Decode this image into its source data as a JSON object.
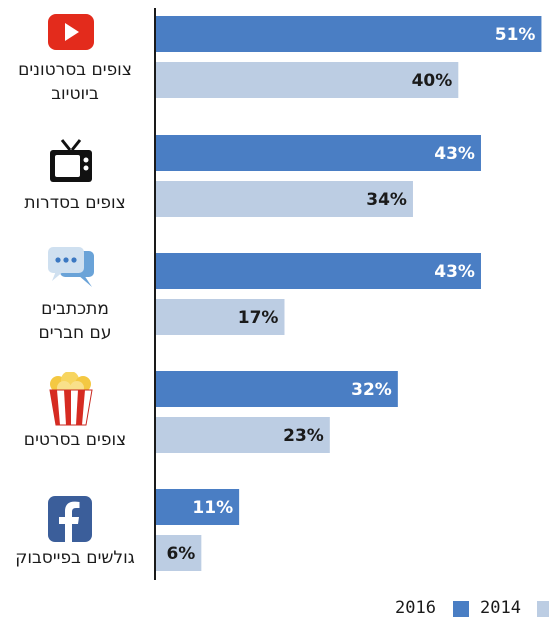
{
  "chart_data": {
    "type": "bar",
    "orientation": "horizontal",
    "categories": [
      "צופים בסרטונים ביוטיוב",
      "צופים בסדרות",
      "מתכתבים עם חברים",
      "צופים בסרטים",
      "גולשים בפייסבוק"
    ],
    "category_lines": [
      [
        "צופים בסרטונים",
        "ביוטיוב"
      ],
      [
        "צופים בסדרות"
      ],
      [
        "מתכתבים",
        "עם חברים"
      ],
      [
        "צופים בסרטים"
      ],
      [
        "גולשים בפייסבוק"
      ]
    ],
    "category_icons": [
      "youtube-icon",
      "tv-icon",
      "chat-bubble-icon",
      "popcorn-icon",
      "facebook-icon"
    ],
    "series": [
      {
        "name": "2016",
        "values": [
          51,
          43,
          43,
          32,
          11
        ],
        "color": "#4a7ec4",
        "labels": [
          "51%",
          "43%",
          "43%",
          "32%",
          "11%"
        ]
      },
      {
        "name": "2014",
        "values": [
          40,
          34,
          17,
          23,
          6
        ],
        "color": "#bccde3",
        "labels": [
          "40%",
          "34%",
          "17%",
          "23%",
          "6%"
        ]
      }
    ],
    "xlim": [
      0,
      52
    ],
    "title": "",
    "xlabel": "",
    "ylabel": "",
    "grid": false,
    "legend_position": "bottom-right"
  },
  "legend": {
    "items": [
      {
        "label": "2016",
        "color": "#4a7ec4"
      },
      {
        "label": "2014",
        "color": "#bccde3"
      }
    ]
  }
}
